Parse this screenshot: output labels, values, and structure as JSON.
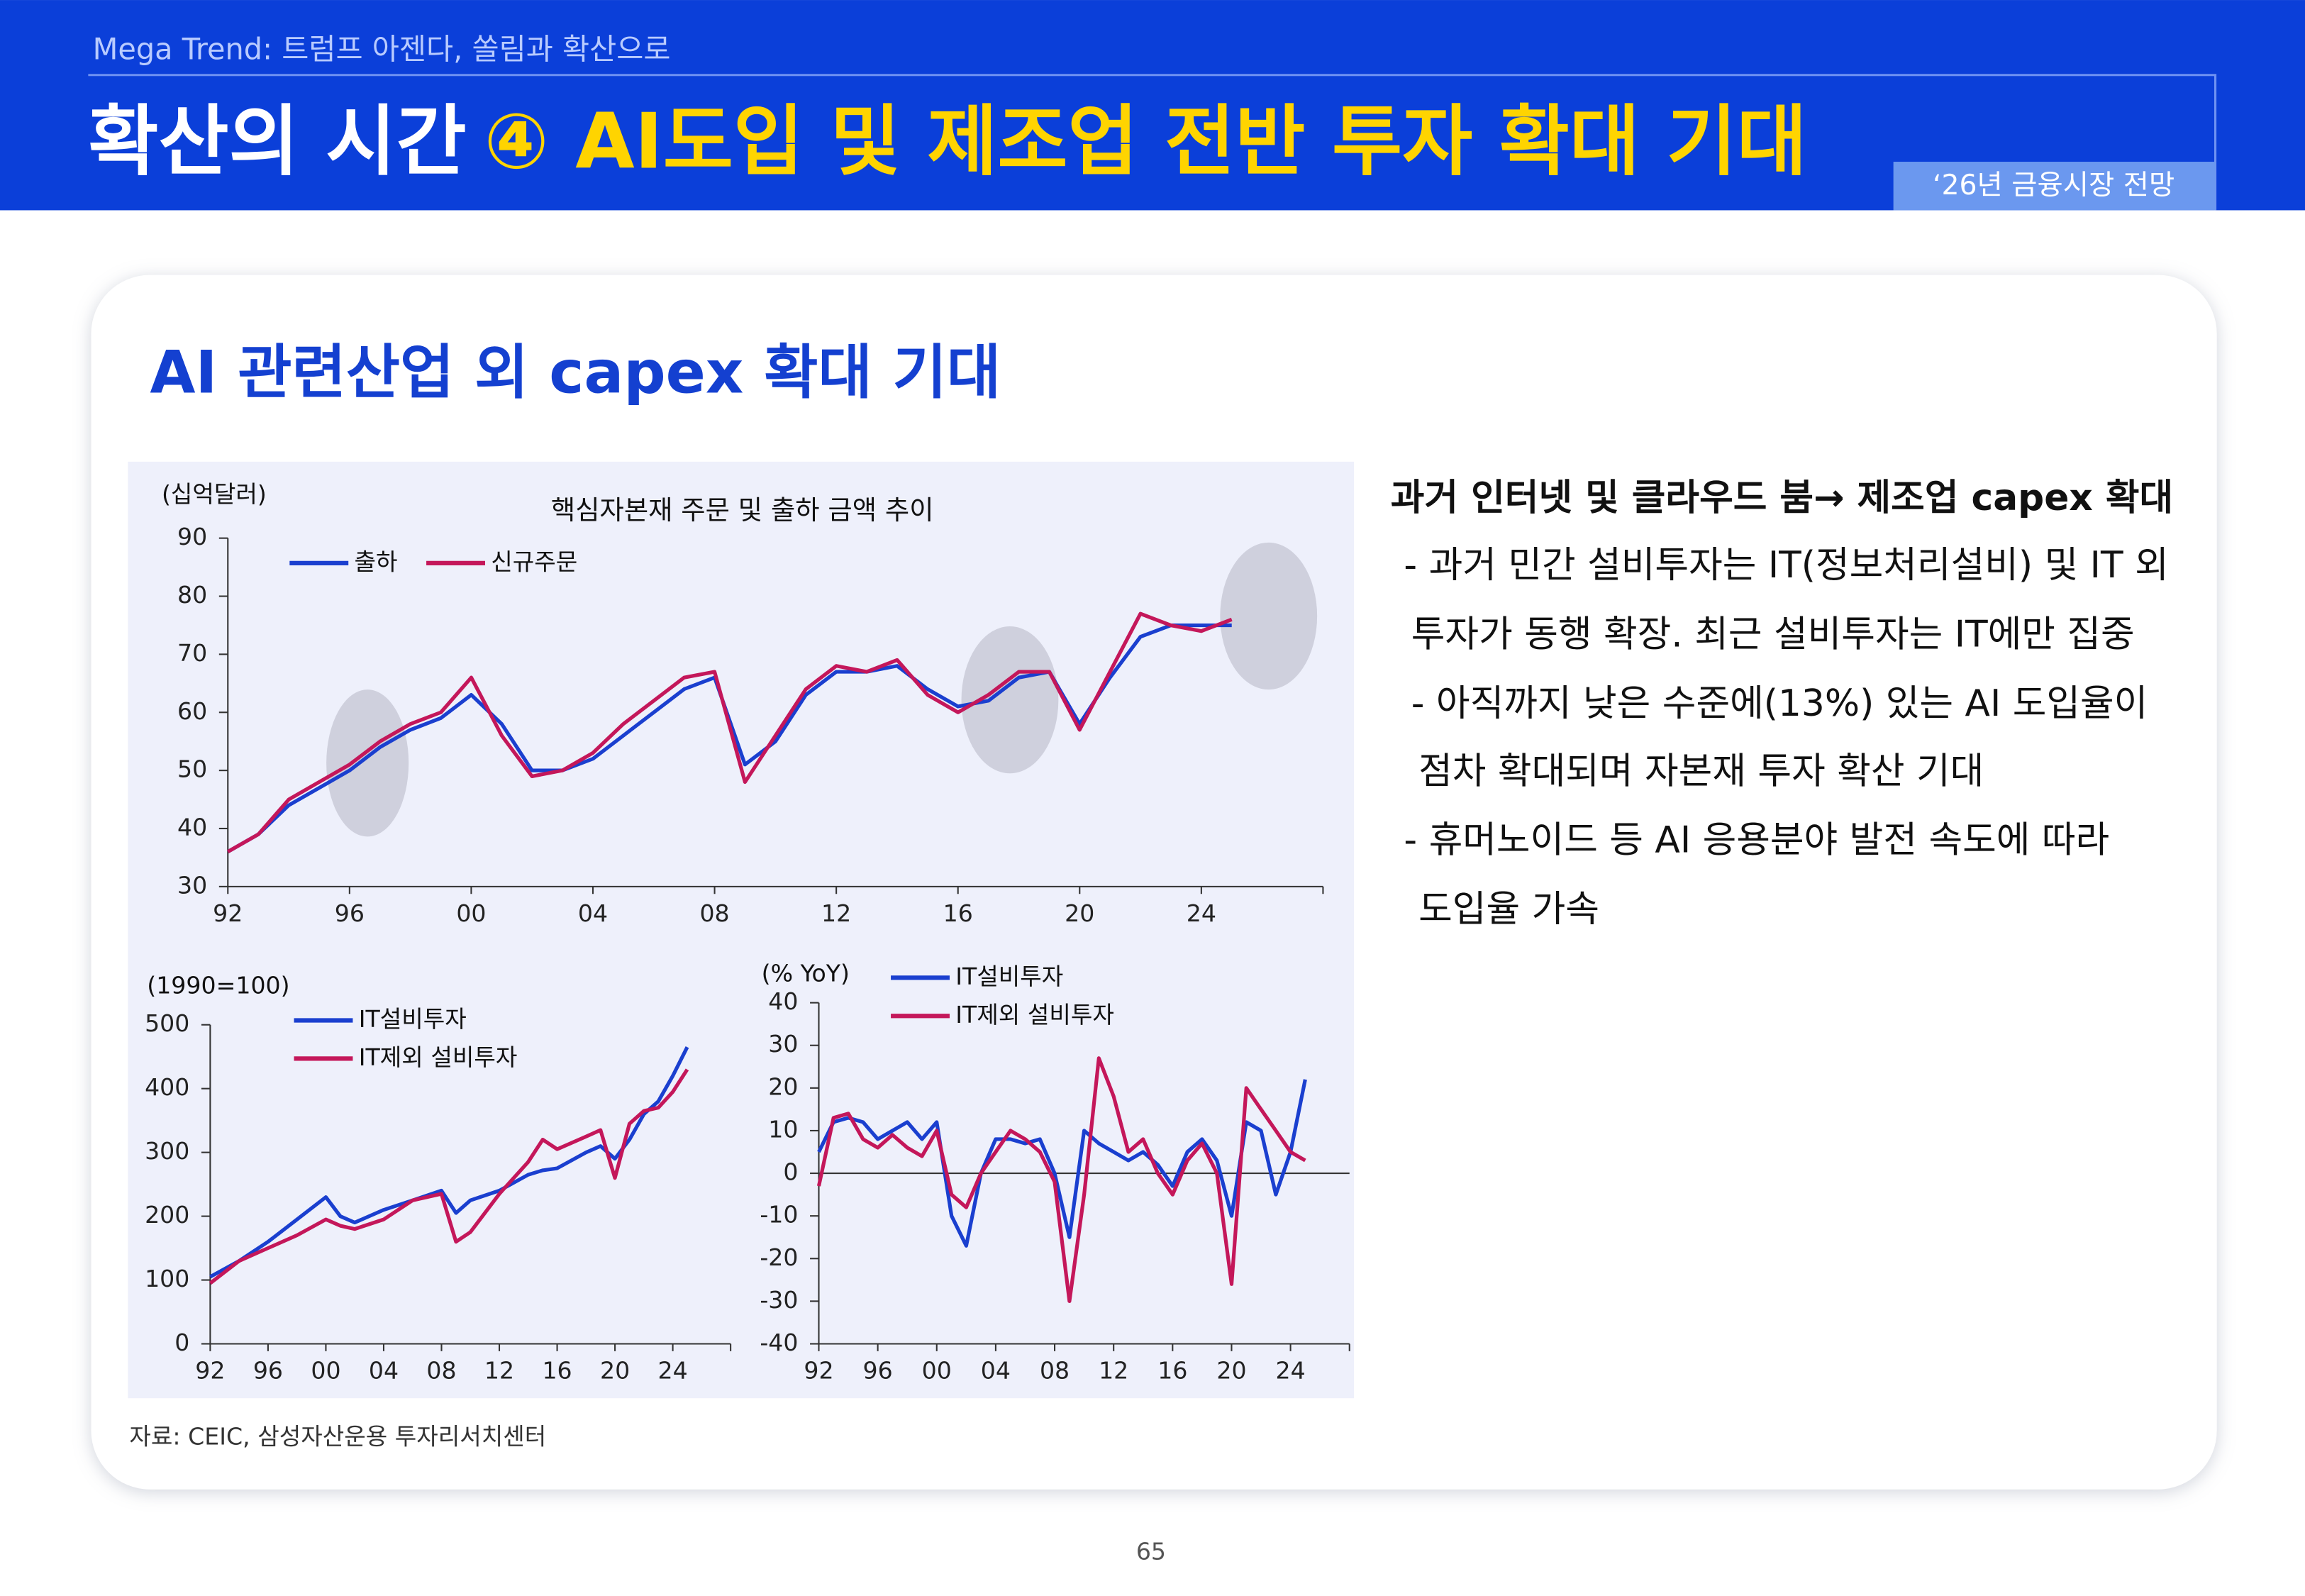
{
  "header": {
    "kicker": "Mega Trend: 트럼프 아젠다, 쏠림과 확산으로",
    "title_main": "확산의 시간",
    "title_highlight": "④ AI도입 및 제조업 전반 투자 확대 기대",
    "tag": "‘26년 금융시장 전망"
  },
  "section_title": "AI 관련산업 외 capex 확대 기대",
  "bullets": [
    "과거 인터넷 및 클라우드 붐→ 제조업 capex 확대",
    "- 과거 민간 설비투자는 IT(정보처리설비) 및 IT 외",
    "투자가 동행 확장. 최근 설비투자는 IT에만 집중",
    "- 아직까지 낮은 수준에(13%) 있는 AI 도입율이",
    "점차 확대되며 자본재 투자 확산 기대",
    "- 휴머노이드 등 AI 응용분야 발전 속도에 따라",
    "도입율 가속"
  ],
  "source": "자료: CEIC, 삼성자산운용 투자리서치센터",
  "page_number": "65",
  "chart_data": [
    {
      "type": "line",
      "title": "핵심자본재 주문 및 출하 금액 추이",
      "ylabel": "(십억달러)",
      "legend": "upper left",
      "x": [
        1992,
        1993,
        1994,
        1995,
        1996,
        1997,
        1998,
        1999,
        2000,
        2001,
        2002,
        2003,
        2004,
        2005,
        2006,
        2007,
        2008,
        2009,
        2010,
        2011,
        2012,
        2013,
        2014,
        2015,
        2016,
        2017,
        2018,
        2019,
        2020,
        2021,
        2022,
        2023,
        2024,
        2025
      ],
      "series": [
        {
          "name": "출하",
          "color": "#1a3fcf",
          "values": [
            36,
            39,
            44,
            47,
            50,
            54,
            57,
            59,
            63,
            58,
            50,
            50,
            52,
            56,
            60,
            64,
            66,
            51,
            55,
            63,
            67,
            67,
            68,
            64,
            61,
            62,
            66,
            67,
            58,
            66,
            73,
            75,
            75,
            75
          ]
        },
        {
          "name": "신규주문",
          "color": "#c4175a",
          "values": [
            36,
            39,
            45,
            48,
            51,
            55,
            58,
            60,
            66,
            56,
            49,
            50,
            53,
            58,
            62,
            66,
            67,
            48,
            56,
            64,
            68,
            67,
            69,
            63,
            60,
            63,
            67,
            67,
            57,
            67,
            77,
            75,
            74,
            76
          ]
        }
      ],
      "xlim": [
        1992,
        2028
      ],
      "xticks": [
        {
          "value": 1992,
          "label": "92"
        },
        {
          "value": 1996,
          "label": "96"
        },
        {
          "value": 2000,
          "label": "00"
        },
        {
          "value": 2004,
          "label": "04"
        },
        {
          "value": 2008,
          "label": "08"
        },
        {
          "value": 2012,
          "label": "12"
        },
        {
          "value": 2016,
          "label": "16"
        },
        {
          "value": 2020,
          "label": "20"
        },
        {
          "value": 2024,
          "label": "24"
        }
      ],
      "ylim": [
        30,
        90
      ],
      "yticks": [
        30,
        40,
        50,
        60,
        70,
        80,
        90
      ]
    },
    {
      "type": "line",
      "ylabel": "(1990=100)",
      "legend": "upper left",
      "x": [
        1992,
        1994,
        1996,
        1998,
        2000,
        2001,
        2002,
        2004,
        2006,
        2008,
        2009,
        2010,
        2012,
        2014,
        2015,
        2016,
        2018,
        2019,
        2020,
        2021,
        2022,
        2023,
        2024,
        2025
      ],
      "series": [
        {
          "name": "IT설비투자",
          "color": "#1a3fcf",
          "values": [
            105,
            130,
            160,
            195,
            230,
            200,
            190,
            210,
            225,
            240,
            205,
            225,
            240,
            265,
            272,
            275,
            300,
            310,
            290,
            320,
            360,
            380,
            420,
            465
          ]
        },
        {
          "name": "IT제외 설비투자",
          "color": "#c4175a",
          "values": [
            95,
            130,
            150,
            170,
            195,
            185,
            180,
            195,
            225,
            235,
            160,
            175,
            235,
            285,
            320,
            305,
            325,
            335,
            260,
            345,
            365,
            370,
            395,
            430
          ]
        }
      ],
      "xlim": [
        1992,
        2028
      ],
      "xticks": [
        {
          "value": 1992,
          "label": "92"
        },
        {
          "value": 1996,
          "label": "96"
        },
        {
          "value": 2000,
          "label": "00"
        },
        {
          "value": 2004,
          "label": "04"
        },
        {
          "value": 2008,
          "label": "08"
        },
        {
          "value": 2012,
          "label": "12"
        },
        {
          "value": 2016,
          "label": "16"
        },
        {
          "value": 2020,
          "label": "20"
        },
        {
          "value": 2024,
          "label": "24"
        }
      ],
      "ylim": [
        0,
        500
      ],
      "yticks": [
        0,
        100,
        200,
        300,
        400,
        500
      ]
    },
    {
      "type": "line",
      "ylabel": "(% YoY)",
      "legend": "upper center",
      "x": [
        1992,
        1993,
        1994,
        1995,
        1996,
        1997,
        1998,
        1999,
        2000,
        2001,
        2002,
        2003,
        2004,
        2005,
        2006,
        2007,
        2008,
        2009,
        2010,
        2011,
        2012,
        2013,
        2014,
        2015,
        2016,
        2017,
        2018,
        2019,
        2020,
        2021,
        2022,
        2023,
        2024,
        2025
      ],
      "series": [
        {
          "name": "IT설비투자",
          "color": "#1a3fcf",
          "values": [
            5,
            12,
            13,
            12,
            8,
            10,
            12,
            8,
            12,
            -10,
            -17,
            0,
            8,
            8,
            7,
            8,
            0,
            -15,
            10,
            7,
            5,
            3,
            5,
            2,
            -3,
            5,
            8,
            3,
            -10,
            12,
            10,
            -5,
            5,
            22
          ]
        },
        {
          "name": "IT제외 설비투자",
          "color": "#c4175a",
          "values": [
            -3,
            13,
            14,
            8,
            6,
            9,
            6,
            4,
            10,
            -5,
            -8,
            0,
            5,
            10,
            8,
            5,
            -2,
            -30,
            -5,
            27,
            18,
            5,
            8,
            0,
            -5,
            3,
            7,
            0,
            -26,
            20,
            15,
            10,
            5,
            3
          ]
        }
      ],
      "xlim": [
        1992,
        2028
      ],
      "xticks": [
        {
          "value": 1992,
          "label": "92"
        },
        {
          "value": 1996,
          "label": "96"
        },
        {
          "value": 2000,
          "label": "00"
        },
        {
          "value": 2004,
          "label": "04"
        },
        {
          "value": 2008,
          "label": "08"
        },
        {
          "value": 2012,
          "label": "12"
        },
        {
          "value": 2016,
          "label": "16"
        },
        {
          "value": 2020,
          "label": "20"
        },
        {
          "value": 2024,
          "label": "24"
        }
      ],
      "ylim": [
        -40,
        40
      ],
      "yticks": [
        -40,
        -30,
        -20,
        -10,
        0,
        10,
        20,
        30,
        40
      ]
    }
  ]
}
